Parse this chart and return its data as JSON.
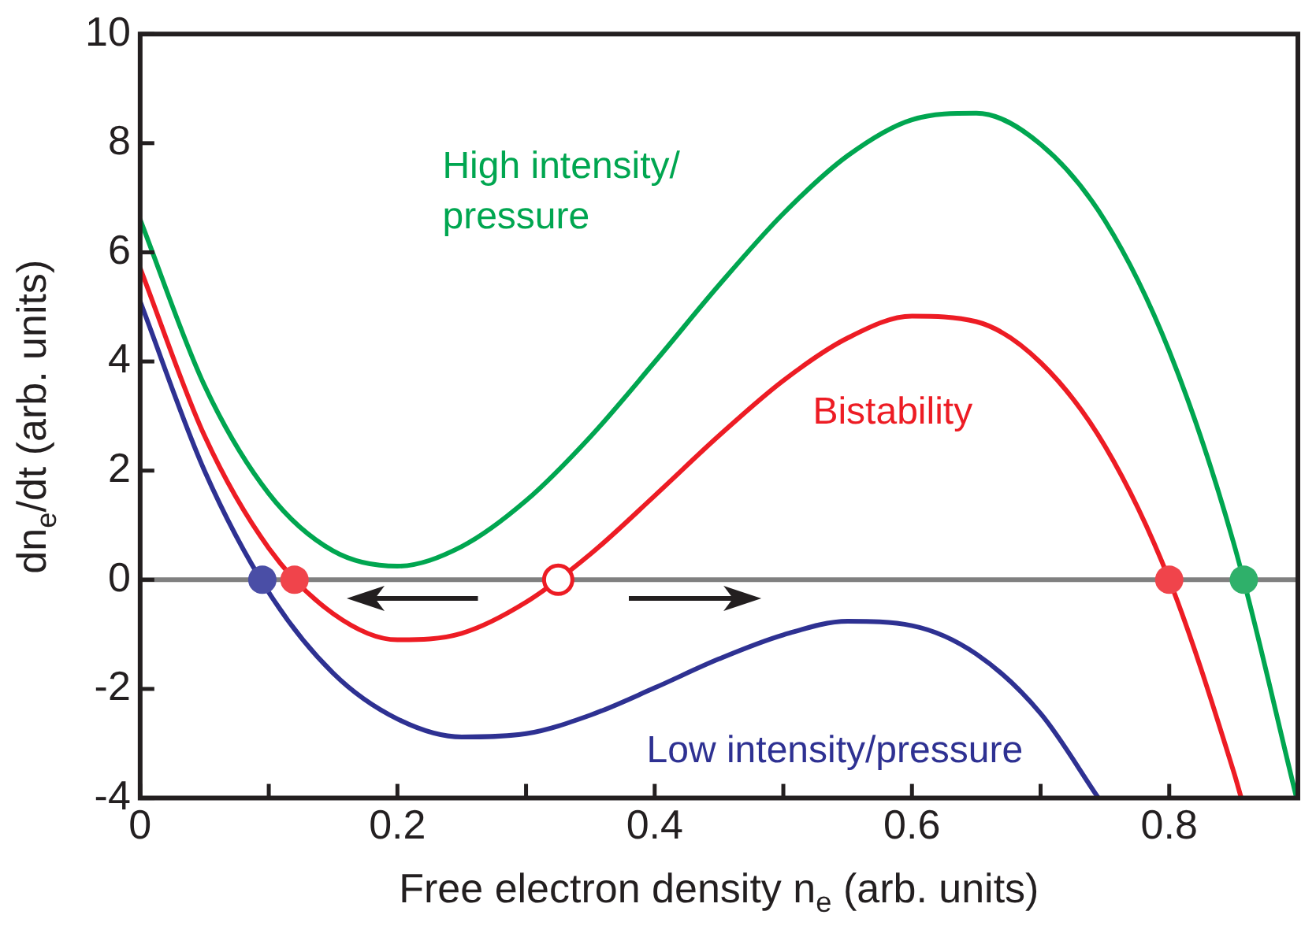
{
  "chart_data": {
    "type": "line",
    "xlabel": "Free electron density n$_{e}$ (arb. units)",
    "ylabel": "dn$_{e}$/dt (arb. units)",
    "xlim": [
      0,
      0.9
    ],
    "ylim": [
      -4,
      10
    ],
    "xticks": [
      0,
      {
        "value": 0.1,
        "label": null
      },
      0.2,
      {
        "value": 0.3,
        "label": null
      },
      0.4,
      {
        "value": 0.5,
        "label": null
      },
      0.6,
      {
        "value": 0.7,
        "label": null
      },
      0.8
    ],
    "yticks": [
      -4,
      -2,
      0,
      2,
      4,
      6,
      8,
      10
    ],
    "grid": false,
    "legend": false,
    "marker": "none",
    "line_style": "solid",
    "ref_lines": [
      {
        "axis": "y",
        "value": 0,
        "color": "#808080"
      }
    ],
    "series": [
      {
        "name": "High intensity/pressure",
        "color": "#00a650",
        "x": [
          0,
          0.05,
          0.1,
          0.15,
          0.2,
          0.25,
          0.3,
          0.35,
          0.4,
          0.45,
          0.5,
          0.55,
          0.6,
          0.65,
          0.7,
          0.75,
          0.8,
          0.85,
          0.899
        ],
        "values": [
          6.6,
          3.56,
          1.58,
          0.53,
          0.25,
          0.61,
          1.45,
          2.62,
          3.99,
          5.4,
          6.71,
          7.77,
          8.43,
          8.55,
          7.98,
          6.58,
          4.19,
          0.68,
          -4
        ]
      },
      {
        "name": "Bistability",
        "color": "#ed1c24",
        "x": [
          0,
          0.05,
          0.1,
          0.15,
          0.2,
          0.25,
          0.3,
          0.35,
          0.4,
          0.45,
          0.5,
          0.55,
          0.6,
          0.65,
          0.7,
          0.75,
          0.8,
          0.85,
          0.856
        ],
        "values": [
          5.71,
          2.64,
          0.58,
          -0.62,
          -1.1,
          -0.98,
          -0.41,
          0.47,
          1.54,
          2.64,
          3.65,
          4.43,
          4.83,
          4.73,
          3.98,
          2.45,
          0,
          -3.51,
          -4
        ]
      },
      {
        "name": "Low intensity/pressure",
        "color": "#2e3192",
        "x": [
          0,
          0.05,
          0.1,
          0.15,
          0.2,
          0.25,
          0.3,
          0.35,
          0.4,
          0.45,
          0.5,
          0.55,
          0.6,
          0.65,
          0.7,
          0.745
        ],
        "values": [
          5.1,
          2.0,
          -0.23,
          -1.71,
          -2.55,
          -2.88,
          -2.82,
          -2.48,
          -1.98,
          -1.45,
          -1.01,
          -0.76,
          -0.84,
          -1.36,
          -2.45,
          -4
        ]
      },
      {
        "type": "scatter",
        "marker": "circle",
        "x": [
          0.095,
          0.12,
          0.8,
          0.858
        ],
        "values": [
          0,
          0,
          0,
          0
        ],
        "colors": [
          "#4a4ea6",
          "#f0444b",
          "#f0444b",
          "#2fb06a"
        ]
      },
      {
        "type": "scatter",
        "marker": "circle",
        "x": [
          0.325
        ],
        "values": [
          0
        ],
        "color": "#ed1c24"
      }
    ]
  }
}
